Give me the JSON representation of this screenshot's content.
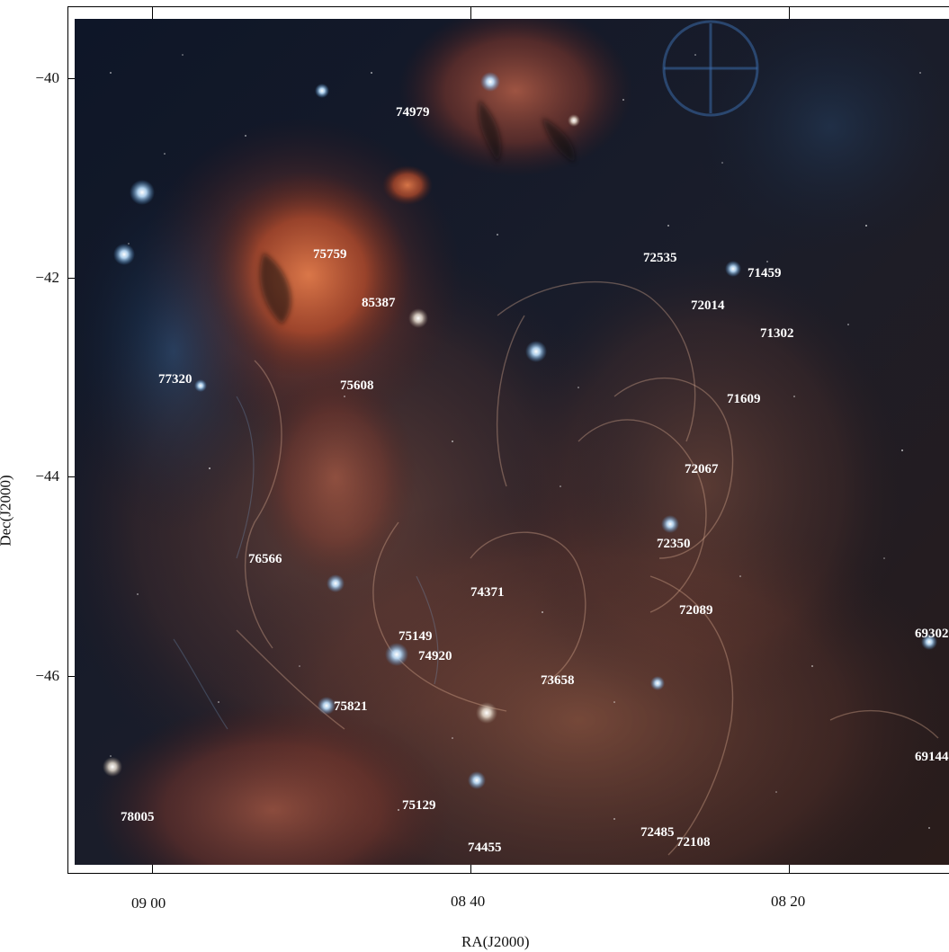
{
  "figure": {
    "x_axis_title": "RA(J2000)",
    "y_axis_title": "Dec(J2000)",
    "x_ticks": [
      {
        "label": "09 00"
      },
      {
        "label": "08 40"
      },
      {
        "label": "08 20"
      }
    ],
    "y_ticks": [
      {
        "label": "−40"
      },
      {
        "label": "−42"
      },
      {
        "label": "−44"
      },
      {
        "label": "−46"
      }
    ]
  },
  "image": {
    "subject": "Gum nebula / Vela region colour sky image",
    "colors": {
      "deep_space": "#0c1424",
      "nebula_red": "#b8502e",
      "nebula_orange": "#d9784a",
      "blue_star": "#9fd0ff",
      "label_text": "#ffffff"
    }
  },
  "star_labels": [
    {
      "text": "74979"
    },
    {
      "text": "75759"
    },
    {
      "text": "85387"
    },
    {
      "text": "72535"
    },
    {
      "text": "71459"
    },
    {
      "text": "72014"
    },
    {
      "text": "71302"
    },
    {
      "text": "77320"
    },
    {
      "text": "75608"
    },
    {
      "text": "71609"
    },
    {
      "text": "72067"
    },
    {
      "text": "76566"
    },
    {
      "text": "72350"
    },
    {
      "text": "74371"
    },
    {
      "text": "72089"
    },
    {
      "text": "75149"
    },
    {
      "text": "74920"
    },
    {
      "text": "69302"
    },
    {
      "text": "73658"
    },
    {
      "text": "75821"
    },
    {
      "text": "69144"
    },
    {
      "text": "75129"
    },
    {
      "text": "78005"
    },
    {
      "text": "72485"
    },
    {
      "text": "72108"
    },
    {
      "text": "74455"
    }
  ]
}
